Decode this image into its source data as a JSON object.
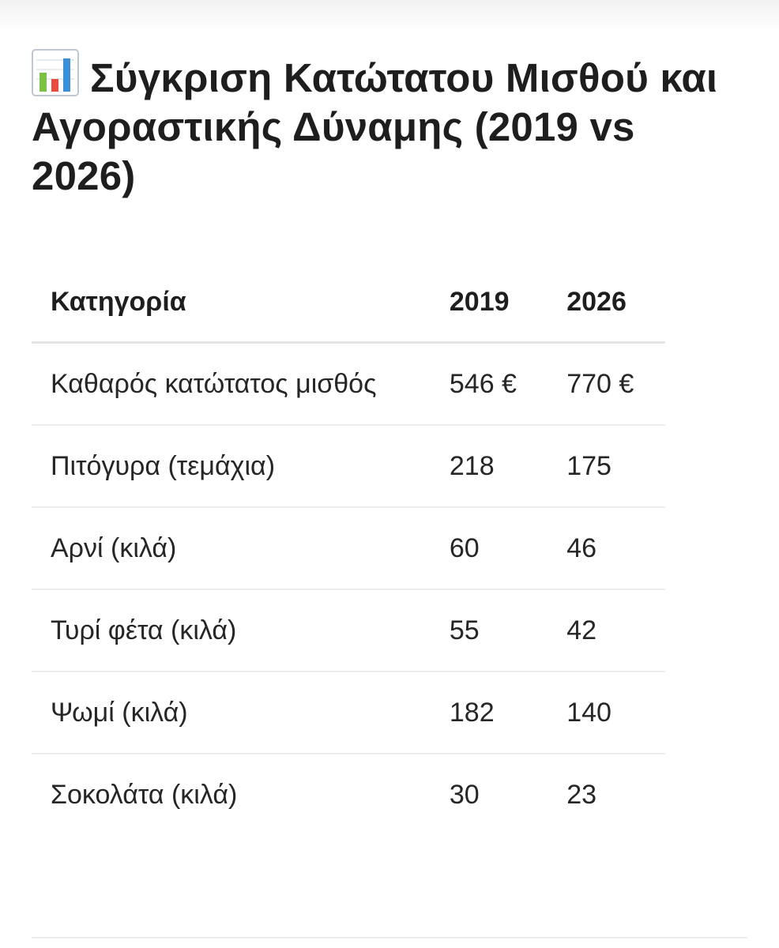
{
  "title": "Σύγκριση Κατώτατου Μισθού και Αγοραστικής Δύναμης (2019 vs 2026)",
  "title_icon": "bar-chart-icon",
  "table": {
    "headers": [
      "Κατηγορία",
      "2019",
      "2026"
    ],
    "rows": [
      [
        "Καθαρός κατώτατος μισθός",
        "546 €",
        "770 €"
      ],
      [
        "Πιτόγυρα (τεμάχια)",
        "218",
        "175"
      ],
      [
        "Αρνί (κιλά)",
        "60",
        "46"
      ],
      [
        "Τυρί φέτα (κιλά)",
        "55",
        "42"
      ],
      [
        "Ψωμί (κιλά)",
        "182",
        "140"
      ],
      [
        "Σοκολάτα (κιλά)",
        "30",
        "23"
      ]
    ]
  }
}
